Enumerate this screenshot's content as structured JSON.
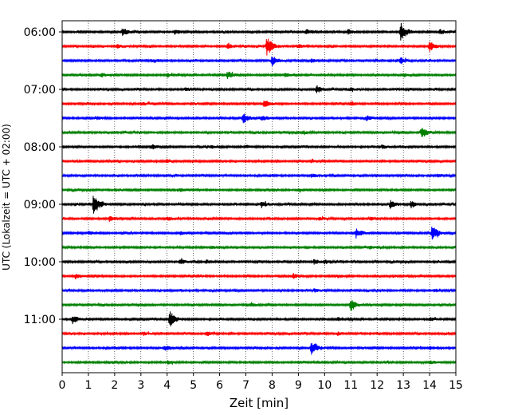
{
  "chart_data": {
    "type": "line",
    "title": "",
    "xlabel": "Zeit  [min]",
    "ylabel": "UTC (Lokalzeit = UTC + 02:00)",
    "xlim": [
      0,
      15
    ],
    "x_ticks": [
      "0",
      "1",
      "2",
      "3",
      "4",
      "5",
      "6",
      "7",
      "8",
      "9",
      "10",
      "11",
      "12",
      "13",
      "14",
      "15"
    ],
    "y_ticks": [
      "06:00",
      "07:00",
      "08:00",
      "09:00",
      "10:00",
      "11:00"
    ],
    "grid": "vertical-dotted",
    "colors": [
      "#000000",
      "#ff0000",
      "#0000ff",
      "#008000"
    ],
    "traces": [
      {
        "start": "06:00",
        "color": "#000000",
        "events": [
          [
            2.3,
            5
          ],
          [
            4.3,
            3
          ],
          [
            9.3,
            3
          ],
          [
            10.9,
            3
          ],
          [
            12.9,
            12
          ],
          [
            14.4,
            3
          ]
        ]
      },
      {
        "start": "06:15",
        "color": "#ff0000",
        "events": [
          [
            2.1,
            2
          ],
          [
            6.3,
            3
          ],
          [
            7.8,
            12
          ],
          [
            9.0,
            2
          ],
          [
            14.0,
            6
          ]
        ]
      },
      {
        "start": "06:30",
        "color": "#0000ff",
        "events": [
          [
            3.5,
            2
          ],
          [
            8.0,
            6
          ],
          [
            9.5,
            2
          ],
          [
            12.9,
            4
          ]
        ]
      },
      {
        "start": "06:45",
        "color": "#008000",
        "events": [
          [
            1.5,
            2
          ],
          [
            4.0,
            2
          ],
          [
            6.3,
            5
          ],
          [
            8.5,
            2
          ],
          [
            13.0,
            2
          ]
        ]
      },
      {
        "start": "07:00",
        "color": "#000000",
        "events": [
          [
            4.7,
            2
          ],
          [
            9.7,
            5
          ],
          [
            11.0,
            2
          ]
        ]
      },
      {
        "start": "07:15",
        "color": "#ff0000",
        "events": [
          [
            3.0,
            2
          ],
          [
            7.7,
            5
          ],
          [
            11.0,
            2
          ]
        ]
      },
      {
        "start": "07:30",
        "color": "#0000ff",
        "events": [
          [
            1.3,
            2
          ],
          [
            6.9,
            7
          ],
          [
            7.6,
            3
          ],
          [
            11.6,
            3
          ]
        ]
      },
      {
        "start": "07:45",
        "color": "#008000",
        "events": [
          [
            9.2,
            2
          ],
          [
            13.7,
            7
          ]
        ]
      },
      {
        "start": "08:00",
        "color": "#000000",
        "events": [
          [
            3.4,
            3
          ],
          [
            5.7,
            2
          ],
          [
            7.0,
            2
          ],
          [
            12.2,
            2
          ]
        ]
      },
      {
        "start": "08:15",
        "color": "#ff0000",
        "events": [
          [
            4.0,
            2
          ],
          [
            9.5,
            2
          ]
        ]
      },
      {
        "start": "08:30",
        "color": "#0000ff",
        "events": [
          [
            9.5,
            3
          ],
          [
            14.3,
            2
          ]
        ]
      },
      {
        "start": "08:45",
        "color": "#008000",
        "events": [
          [
            4.5,
            2
          ],
          [
            9.0,
            2
          ]
        ]
      },
      {
        "start": "09:00",
        "color": "#000000",
        "events": [
          [
            1.2,
            14
          ],
          [
            7.6,
            4
          ],
          [
            12.5,
            5
          ],
          [
            13.3,
            4
          ],
          [
            15.0,
            3
          ]
        ]
      },
      {
        "start": "09:15",
        "color": "#ff0000",
        "events": [
          [
            1.8,
            4
          ],
          [
            4.0,
            2
          ],
          [
            9.8,
            2
          ],
          [
            11.7,
            2
          ]
        ]
      },
      {
        "start": "09:30",
        "color": "#0000ff",
        "events": [
          [
            1.0,
            2
          ],
          [
            4.5,
            2
          ],
          [
            11.2,
            6
          ],
          [
            14.1,
            10
          ]
        ]
      },
      {
        "start": "09:45",
        "color": "#008000",
        "events": [
          [
            5.7,
            2
          ],
          [
            11.7,
            2
          ]
        ]
      },
      {
        "start": "10:00",
        "color": "#000000",
        "events": [
          [
            4.5,
            3
          ],
          [
            5.5,
            2
          ],
          [
            9.6,
            3
          ],
          [
            10.0,
            2
          ]
        ]
      },
      {
        "start": "10:15",
        "color": "#ff0000",
        "events": [
          [
            0.5,
            3
          ],
          [
            8.8,
            3
          ],
          [
            10.5,
            2
          ]
        ]
      },
      {
        "start": "10:30",
        "color": "#0000ff",
        "events": [
          [
            9.6,
            2
          ],
          [
            14.2,
            2
          ]
        ]
      },
      {
        "start": "10:45",
        "color": "#008000",
        "events": [
          [
            7.2,
            2
          ],
          [
            11.0,
            8
          ]
        ]
      },
      {
        "start": "11:00",
        "color": "#000000",
        "events": [
          [
            0.4,
            5
          ],
          [
            4.1,
            10
          ],
          [
            10.5,
            2
          ],
          [
            14.0,
            2
          ]
        ]
      },
      {
        "start": "11:15",
        "color": "#ff0000",
        "events": [
          [
            3.1,
            2
          ],
          [
            5.5,
            3
          ],
          [
            10.5,
            2
          ]
        ]
      },
      {
        "start": "11:30",
        "color": "#0000ff",
        "events": [
          [
            3.9,
            3
          ],
          [
            9.5,
            8
          ],
          [
            14.0,
            2
          ]
        ]
      },
      {
        "start": "11:45",
        "color": "#008000",
        "events": [
          [
            4.0,
            2
          ],
          [
            14.0,
            2
          ]
        ]
      }
    ]
  }
}
